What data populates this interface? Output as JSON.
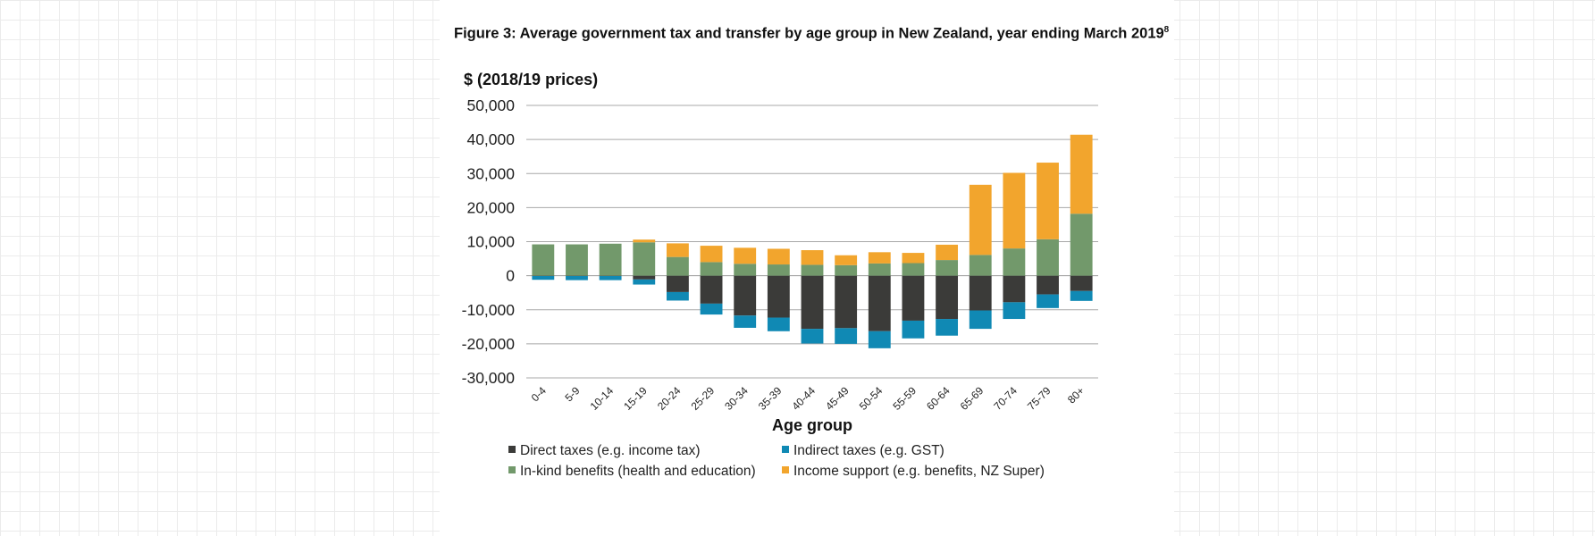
{
  "figure": {
    "title": "Figure 3: Average government tax and transfer by age group in New Zealand, year ending March 2019",
    "footnote_marker": "8"
  },
  "chart_data": {
    "type": "bar",
    "stacked": true,
    "ylabel": "$ (2018/19 prices)",
    "xlabel": "Age group",
    "ylim": [
      -30000,
      50000
    ],
    "yticks": [
      50000,
      40000,
      30000,
      20000,
      10000,
      0,
      -10000,
      -20000,
      -30000
    ],
    "ytick_labels": [
      "50,000",
      "40,000",
      "30,000",
      "20,000",
      "10,000",
      "0",
      "-10,000",
      "-20,000",
      "-30,000"
    ],
    "grid": true,
    "legend_position": "bottom",
    "categories": [
      "0-4",
      "5-9",
      "10-14",
      "15-19",
      "20-24",
      "25-29",
      "30-34",
      "35-39",
      "40-44",
      "45-49",
      "50-54",
      "55-59",
      "60-64",
      "65-69",
      "70-74",
      "75-79",
      "80+"
    ],
    "series": [
      {
        "name": "Direct taxes (e.g. income tax)",
        "color": "#3b3b39",
        "values": [
          -100,
          -100,
          -100,
          -1100,
          -4800,
          -8200,
          -11700,
          -12300,
          -15600,
          -15400,
          -16300,
          -13200,
          -12700,
          -10200,
          -7800,
          -5500,
          -4500
        ]
      },
      {
        "name": "Indirect taxes (e.g. GST)",
        "color": "#1089b4",
        "values": [
          -1100,
          -1200,
          -1200,
          -1500,
          -2500,
          -3200,
          -3600,
          -4000,
          -4300,
          -4600,
          -5000,
          -5200,
          -4900,
          -5400,
          -4900,
          -4000,
          -2900
        ]
      },
      {
        "name": "In-kind benefits (health and education)",
        "color": "#72996b",
        "values": [
          9200,
          9200,
          9400,
          9800,
          5500,
          4000,
          3500,
          3300,
          3200,
          3100,
          3600,
          3700,
          4600,
          6100,
          8000,
          10700,
          18200
        ]
      },
      {
        "name": "Income support (e.g. benefits, NZ Super)",
        "color": "#f2a52d",
        "values": [
          0,
          0,
          0,
          800,
          4000,
          4800,
          4700,
          4600,
          4300,
          2900,
          3300,
          3000,
          4500,
          20600,
          22200,
          22500,
          23200
        ]
      }
    ]
  }
}
